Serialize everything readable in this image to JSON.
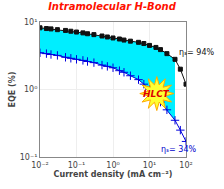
{
  "chart_data": {
    "type": "line",
    "title": "Intramolecular H-Bond",
    "title_color": "#ff1100",
    "xlabel": "Current density (mA cm⁻²)",
    "ylabel": "EQE (%)",
    "log": true,
    "grid": true,
    "xlim": [
      0.01,
      100
    ],
    "ylim": [
      0.1,
      10
    ],
    "xticks": [
      {
        "value": 0.01,
        "label": "10⁻²"
      },
      {
        "value": 0.1,
        "label": "10⁻¹"
      },
      {
        "value": 1,
        "label": "10⁰"
      },
      {
        "value": 10,
        "label": "10¹"
      },
      {
        "value": 100,
        "label": "10²"
      }
    ],
    "yticks": [
      {
        "value": 0.1,
        "label": "10⁻¹"
      },
      {
        "value": 1,
        "label": "10⁰"
      },
      {
        "value": 10,
        "label": "10¹"
      }
    ],
    "x": [
      0.01,
      0.015,
      0.02,
      0.03,
      0.05,
      0.07,
      0.1,
      0.15,
      0.2,
      0.3,
      0.5,
      0.7,
      1,
      1.5,
      2,
      3,
      5,
      7,
      10,
      15,
      20,
      30,
      50,
      70,
      100
    ],
    "series": [
      {
        "color": "#111111",
        "marker": "square",
        "values": [
          8.2,
          8.0,
          7.9,
          7.7,
          7.5,
          7.3,
          7.1,
          6.9,
          6.7,
          6.5,
          6.2,
          6.0,
          5.8,
          5.6,
          5.4,
          5.2,
          5.0,
          4.8,
          4.5,
          4.2,
          3.9,
          3.4,
          2.8,
          2.0,
          1.2
        ]
      },
      {
        "color": "#0000dd",
        "marker": "plus",
        "values": [
          3.5,
          3.4,
          3.3,
          3.2,
          3.0,
          2.9,
          2.8,
          2.7,
          2.6,
          2.5,
          2.3,
          2.2,
          2.1,
          1.9,
          1.8,
          1.6,
          1.4,
          1.2,
          1.0,
          0.8,
          0.65,
          0.5,
          0.35,
          0.25,
          0.17
        ]
      }
    ],
    "fill_between": {
      "color": "#00eeff",
      "x": [
        0.01,
        0.015,
        0.02,
        0.03,
        0.05,
        0.07,
        0.1,
        0.15,
        0.2,
        0.3,
        0.5,
        0.7,
        1,
        1.5,
        2,
        3,
        5,
        7,
        10,
        15,
        20,
        30,
        50
      ],
      "upper": [
        8.2,
        8.0,
        7.9,
        7.7,
        7.5,
        7.3,
        7.1,
        6.9,
        6.7,
        6.5,
        6.2,
        6.0,
        5.8,
        5.6,
        5.4,
        5.2,
        5.0,
        4.8,
        4.5,
        4.2,
        3.9,
        3.4,
        2.8
      ],
      "lower": [
        3.5,
        3.4,
        3.3,
        3.2,
        3.0,
        2.9,
        2.8,
        2.7,
        2.6,
        2.5,
        2.3,
        2.2,
        2.1,
        1.9,
        1.8,
        1.6,
        1.4,
        1.2,
        1.0,
        0.8,
        0.65,
        0.5,
        0.35
      ]
    },
    "annotations": [
      {
        "text": "ηₛ= 94%",
        "x": 55,
        "y": 3.5,
        "color": "#111111"
      },
      {
        "text": "ηₛ= 34%",
        "x": 18,
        "y": 0.13,
        "color": "#0000cc"
      },
      {
        "text": "HLCT",
        "color": "#dd0000"
      }
    ]
  }
}
